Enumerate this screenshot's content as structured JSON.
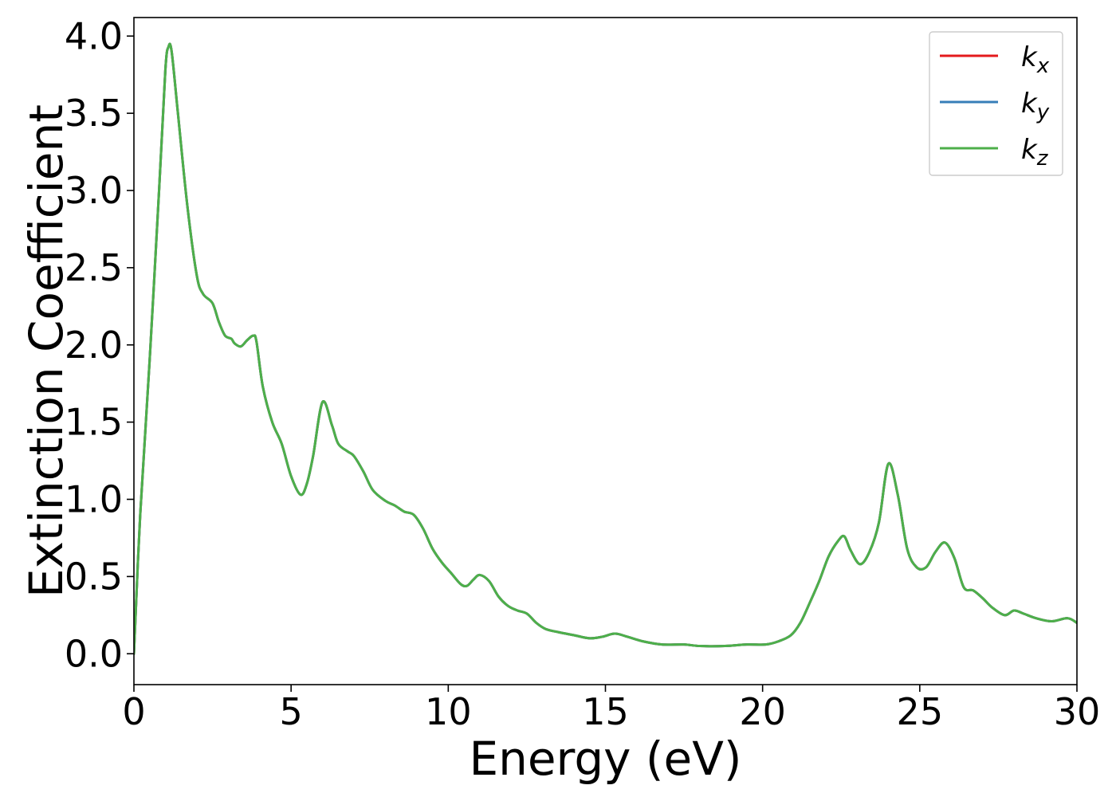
{
  "chart_data": {
    "type": "line",
    "title": "",
    "xlabel": "Energy (eV)",
    "ylabel": "Extinction Coefficient",
    "xlim": [
      0,
      30
    ],
    "ylim": [
      -0.2,
      4.12
    ],
    "xticks": [
      0,
      5,
      10,
      15,
      20,
      25,
      30
    ],
    "xtick_labels": [
      "0",
      "5",
      "10",
      "15",
      "20",
      "25",
      "30"
    ],
    "yticks": [
      0.0,
      0.5,
      1.0,
      1.5,
      2.0,
      2.5,
      3.0,
      3.5,
      4.0
    ],
    "ytick_labels": [
      "0.0",
      "0.5",
      "1.0",
      "1.5",
      "2.0",
      "2.5",
      "3.0",
      "3.5",
      "4.0"
    ],
    "grid": false,
    "legend_position": "top-right",
    "x": [
      0,
      0.2,
      0.5,
      0.8,
      1.0,
      1.1,
      1.2,
      1.4,
      1.7,
      2.0,
      2.2,
      2.5,
      2.7,
      2.9,
      3.1,
      3.2,
      3.4,
      3.6,
      3.8,
      3.9,
      4.1,
      4.4,
      4.7,
      5.0,
      5.3,
      5.5,
      5.7,
      6.0,
      6.3,
      6.5,
      6.8,
      7.0,
      7.3,
      7.6,
      8.0,
      8.3,
      8.6,
      8.9,
      9.2,
      9.5,
      9.8,
      10.1,
      10.4,
      10.6,
      10.8,
      11.0,
      11.3,
      11.6,
      11.9,
      12.2,
      12.5,
      12.8,
      13.1,
      13.5,
      14.0,
      14.5,
      14.9,
      15.3,
      15.7,
      16.2,
      16.8,
      17.5,
      18.0,
      18.8,
      19.5,
      20.1,
      20.5,
      20.9,
      21.2,
      21.5,
      21.8,
      22.1,
      22.4,
      22.6,
      22.8,
      23.1,
      23.4,
      23.7,
      24.0,
      24.3,
      24.6,
      24.9,
      25.2,
      25.5,
      25.8,
      26.1,
      26.4,
      26.7,
      27.0,
      27.3,
      27.7,
      28.0,
      28.3,
      28.7,
      29.2,
      29.7,
      30.0
    ],
    "series": [
      {
        "name": "k_x",
        "color": "#e41a1c",
        "values": [
          0.0,
          0.9,
          1.9,
          3.0,
          3.78,
          3.93,
          3.9,
          3.5,
          2.9,
          2.45,
          2.33,
          2.27,
          2.15,
          2.06,
          2.04,
          2.01,
          1.99,
          2.03,
          2.06,
          2.02,
          1.73,
          1.5,
          1.36,
          1.15,
          1.03,
          1.1,
          1.28,
          1.63,
          1.48,
          1.36,
          1.31,
          1.28,
          1.18,
          1.06,
          0.99,
          0.96,
          0.92,
          0.9,
          0.81,
          0.68,
          0.59,
          0.52,
          0.45,
          0.44,
          0.48,
          0.51,
          0.47,
          0.37,
          0.31,
          0.28,
          0.26,
          0.2,
          0.16,
          0.14,
          0.12,
          0.1,
          0.11,
          0.13,
          0.11,
          0.08,
          0.06,
          0.06,
          0.05,
          0.05,
          0.06,
          0.06,
          0.08,
          0.12,
          0.2,
          0.33,
          0.47,
          0.63,
          0.73,
          0.76,
          0.67,
          0.58,
          0.66,
          0.85,
          1.23,
          1.03,
          0.68,
          0.56,
          0.56,
          0.66,
          0.72,
          0.62,
          0.43,
          0.41,
          0.36,
          0.3,
          0.25,
          0.28,
          0.26,
          0.23,
          0.21,
          0.23,
          0.2
        ]
      },
      {
        "name": "k_y",
        "color": "#377eb8",
        "values": [
          0.0,
          0.9,
          1.9,
          3.0,
          3.78,
          3.93,
          3.9,
          3.5,
          2.9,
          2.45,
          2.33,
          2.27,
          2.15,
          2.06,
          2.04,
          2.01,
          1.99,
          2.03,
          2.06,
          2.02,
          1.73,
          1.5,
          1.36,
          1.15,
          1.03,
          1.1,
          1.28,
          1.63,
          1.48,
          1.36,
          1.31,
          1.28,
          1.18,
          1.06,
          0.99,
          0.96,
          0.92,
          0.9,
          0.81,
          0.68,
          0.59,
          0.52,
          0.45,
          0.44,
          0.48,
          0.51,
          0.47,
          0.37,
          0.31,
          0.28,
          0.26,
          0.2,
          0.16,
          0.14,
          0.12,
          0.1,
          0.11,
          0.13,
          0.11,
          0.08,
          0.06,
          0.06,
          0.05,
          0.05,
          0.06,
          0.06,
          0.08,
          0.12,
          0.2,
          0.33,
          0.47,
          0.63,
          0.73,
          0.76,
          0.67,
          0.58,
          0.66,
          0.85,
          1.23,
          1.03,
          0.68,
          0.56,
          0.56,
          0.66,
          0.72,
          0.62,
          0.43,
          0.41,
          0.36,
          0.3,
          0.25,
          0.28,
          0.26,
          0.23,
          0.21,
          0.23,
          0.2
        ]
      },
      {
        "name": "k_z",
        "color": "#4daf4a",
        "values": [
          0.0,
          0.9,
          1.9,
          3.0,
          3.78,
          3.93,
          3.9,
          3.5,
          2.9,
          2.45,
          2.33,
          2.27,
          2.15,
          2.06,
          2.04,
          2.01,
          1.99,
          2.03,
          2.06,
          2.02,
          1.73,
          1.5,
          1.36,
          1.15,
          1.03,
          1.1,
          1.28,
          1.63,
          1.48,
          1.36,
          1.31,
          1.28,
          1.18,
          1.06,
          0.99,
          0.96,
          0.92,
          0.9,
          0.81,
          0.68,
          0.59,
          0.52,
          0.45,
          0.44,
          0.48,
          0.51,
          0.47,
          0.37,
          0.31,
          0.28,
          0.26,
          0.2,
          0.16,
          0.14,
          0.12,
          0.1,
          0.11,
          0.13,
          0.11,
          0.08,
          0.06,
          0.06,
          0.05,
          0.05,
          0.06,
          0.06,
          0.08,
          0.12,
          0.2,
          0.33,
          0.47,
          0.63,
          0.73,
          0.76,
          0.67,
          0.58,
          0.66,
          0.85,
          1.23,
          1.03,
          0.68,
          0.56,
          0.56,
          0.66,
          0.72,
          0.62,
          0.43,
          0.41,
          0.36,
          0.3,
          0.25,
          0.28,
          0.26,
          0.23,
          0.21,
          0.23,
          0.2
        ]
      }
    ],
    "legend": [
      {
        "base": "k",
        "sub": "x"
      },
      {
        "base": "k",
        "sub": "y"
      },
      {
        "base": "k",
        "sub": "z"
      }
    ]
  }
}
